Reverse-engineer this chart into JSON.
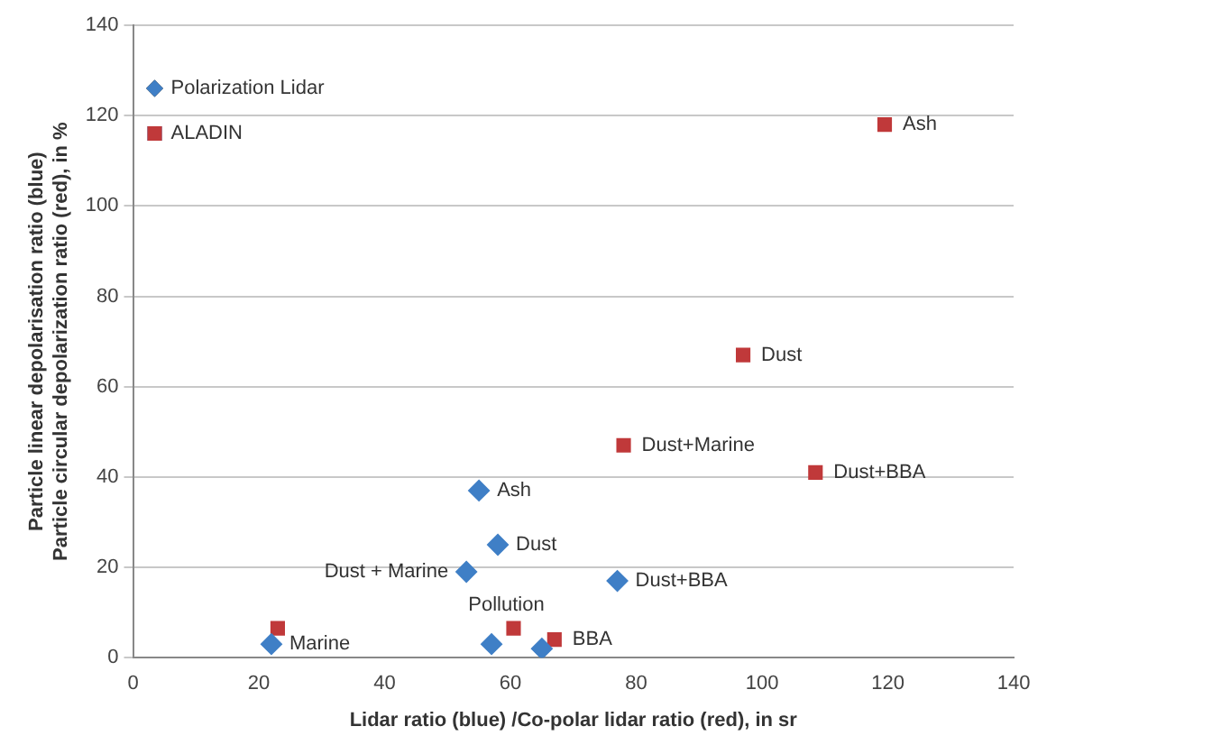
{
  "chart_data": {
    "type": "scatter",
    "xlabel": "Lidar ratio (blue) /Co-polar lidar ratio (red), in sr",
    "ylabel": "Particle linear depolarisation ratio (blue)\nParticle circular depolarization ratio (red), in %",
    "xlim": [
      0,
      140
    ],
    "xticks": [
      0,
      20,
      40,
      60,
      80,
      100,
      120,
      140
    ],
    "ylim": [
      0,
      140
    ],
    "yticks": [
      0,
      20,
      40,
      60,
      80,
      100,
      120,
      140
    ],
    "grid": "y",
    "legend": "top left",
    "series": [
      {
        "name": "Polarization Lidar",
        "color": "#3f7fc6",
        "marker": "diamond",
        "x": [
          22,
          57,
          65,
          55,
          58,
          53,
          77
        ],
        "values": [
          3,
          3,
          2,
          37,
          25,
          19,
          17
        ]
      },
      {
        "name": "ALADIN",
        "color": "#c0393a",
        "marker": "square",
        "x": [
          23,
          60.5,
          67,
          78,
          97,
          108.5,
          119.5
        ],
        "values": [
          6.5,
          6.5,
          4,
          47,
          67,
          41,
          118
        ]
      }
    ],
    "annotations": [
      {
        "text": "Marine",
        "x": 22,
        "y": 3
      },
      {
        "text": "Ash",
        "x": 55,
        "y": 37
      },
      {
        "text": "Dust",
        "x": 58,
        "y": 25
      },
      {
        "text": "Dust + Marine",
        "x": 53,
        "y": 19
      },
      {
        "text": "Dust+BBA",
        "x": 77,
        "y": 17
      },
      {
        "text": "Pollution",
        "x": 60.5,
        "y": 6.5
      },
      {
        "text": "BBA",
        "x": 67,
        "y": 4
      },
      {
        "text": "Dust+Marine",
        "x": 78,
        "y": 47
      },
      {
        "text": "Dust",
        "x": 97,
        "y": 67
      },
      {
        "text": "Dust+BBA",
        "x": 108.5,
        "y": 41
      },
      {
        "text": "Ash",
        "x": 119.5,
        "y": 118
      }
    ]
  }
}
